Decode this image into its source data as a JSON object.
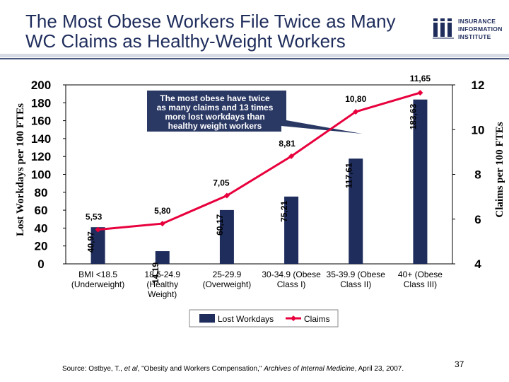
{
  "title": {
    "line1": "The Most Obese Workers File Twice as Many",
    "line2": "WC Claims as Healthy-Weight Workers"
  },
  "logo": {
    "line1": "INSURANCE",
    "line2": "INFORMATION",
    "line3": "INSTITUTE",
    "color": "#1f2d5c"
  },
  "source": {
    "prefix": "Source: Ostbye, T., ",
    "etal": "et al",
    "middle": ", \"Obesity and Workers Compensation,\" ",
    "journal": "Archives of Internal Medicine",
    "suffix": ", April 23, 2007."
  },
  "page_number": "37",
  "chart_data": {
    "type": "bar+line",
    "categories": [
      [
        "BMI <18.5",
        "(Underweight)"
      ],
      [
        "18.5-24.9",
        "(Healthy",
        "Weight)"
      ],
      [
        "25-29.9",
        "(Overweight)"
      ],
      [
        "30-34.9 (Obese",
        "Class I)"
      ],
      [
        "35-39.9 (Obese",
        "Class II)"
      ],
      [
        "40+ (Obese",
        "Class III)"
      ]
    ],
    "series": [
      {
        "name": "Lost Workdays",
        "type": "bar",
        "axis": "left",
        "color": "#1f2d5c",
        "values": [
          40.97,
          14.19,
          60.17,
          75.21,
          117.61,
          183.63
        ],
        "labels": [
          "40,97",
          "14,19",
          "60,17",
          "75,21",
          "117,61",
          "183,63"
        ]
      },
      {
        "name": "Claims",
        "type": "line",
        "axis": "right",
        "color": "#e8003d",
        "values": [
          5.53,
          5.8,
          7.05,
          8.81,
          10.8,
          11.65
        ],
        "labels": [
          "5,53",
          "5,80",
          "7,05",
          "8,81",
          "10,80",
          "11,65"
        ]
      }
    ],
    "y_left": {
      "label": "Lost Workdays per 100 FTEs",
      "min": 0,
      "max": 200,
      "ticks": [
        0,
        20,
        40,
        60,
        80,
        100,
        120,
        140,
        160,
        180,
        200
      ]
    },
    "y_right": {
      "label": "Claims per 100 FTEs",
      "min": 4,
      "max": 12,
      "ticks": [
        4,
        6,
        8,
        10,
        12
      ]
    },
    "annotation": {
      "text": [
        "The most obese have twice",
        "as many claims and 13 times",
        "more lost workdays than",
        "healthy weight workers"
      ],
      "fill": "#1f2d5c"
    },
    "legend": {
      "position": "bottom-center",
      "bar_label": "Lost Workdays",
      "line_label": "Claims"
    },
    "grid": false
  }
}
